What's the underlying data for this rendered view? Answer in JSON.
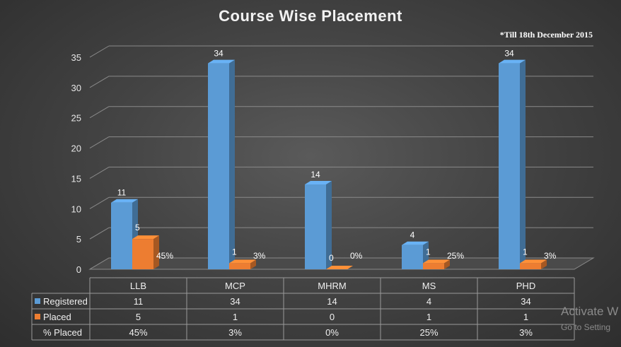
{
  "chart_data": {
    "type": "bar",
    "title": "Course Wise Placement",
    "note": "*Till 18th December 2015",
    "categories": [
      "LLB",
      "MCP",
      "MHRM",
      "MS",
      "PHD"
    ],
    "series": [
      {
        "name": "Registered",
        "values": [
          11,
          34,
          14,
          4,
          34
        ],
        "color": "#5b9bd5"
      },
      {
        "name": "Placed",
        "values": [
          5,
          1,
          0,
          1,
          1
        ],
        "color": "#ed7d31"
      }
    ],
    "percent_placed": {
      "name": "% Placed",
      "values": [
        "45%",
        "3%",
        "0%",
        "25%",
        "3%"
      ]
    },
    "ylim": [
      0,
      35
    ],
    "yticks": [
      0,
      5,
      10,
      15,
      20,
      25,
      30,
      35
    ],
    "grid": true,
    "legend": "data-table"
  },
  "watermark": {
    "line1": "Activate W",
    "line2": "Go to Setting"
  }
}
